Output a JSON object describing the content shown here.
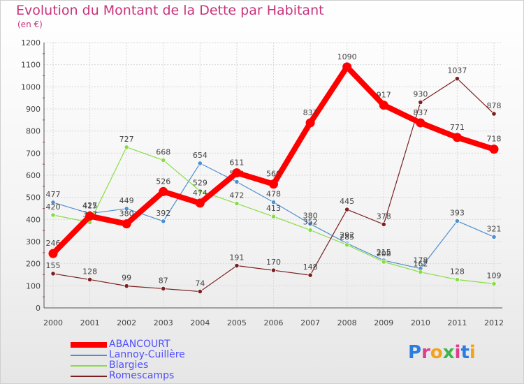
{
  "header": {
    "title": "Evolution du Montant de la Dette par Habitant",
    "subtitle": "(en €)"
  },
  "logo": {
    "text": "Proxiti"
  },
  "chart_data": {
    "type": "line",
    "title": "Evolution du Montant de la Dette par Habitant",
    "subtitle": "(en €)",
    "x": [
      "2000",
      "2001",
      "2002",
      "2003",
      "2004",
      "2005",
      "2006",
      "2007",
      "2008",
      "2009",
      "2010",
      "2011",
      "2012"
    ],
    "ylim": [
      0,
      1200
    ],
    "yticks": [
      0,
      100,
      200,
      300,
      400,
      500,
      600,
      700,
      800,
      900,
      1000,
      1100,
      1200
    ],
    "grid": true,
    "legend_position": "bottom-left",
    "series": [
      {
        "name": "ABANCOURT",
        "color": "#ff0000",
        "emphasis": true,
        "values": [
          246,
          415,
          380,
          526,
          474,
          611,
          560,
          837,
          1090,
          917,
          837,
          771,
          718
        ]
      },
      {
        "name": "Lannoy-Cuillère",
        "color": "#4f8fd0",
        "values": [
          477,
          427,
          449,
          392,
          654,
          570,
          478,
          380,
          292,
          215,
          178,
          393,
          321
        ]
      },
      {
        "name": "Blargies",
        "color": "#88dd44",
        "values": [
          420,
          387,
          727,
          668,
          529,
          472,
          413,
          352,
          285,
          208,
          162,
          128,
          109
        ]
      },
      {
        "name": "Romescamps",
        "color": "#7a2020",
        "values": [
          155,
          128,
          99,
          87,
          74,
          191,
          170,
          148,
          445,
          378,
          930,
          1037,
          878
        ]
      }
    ]
  }
}
